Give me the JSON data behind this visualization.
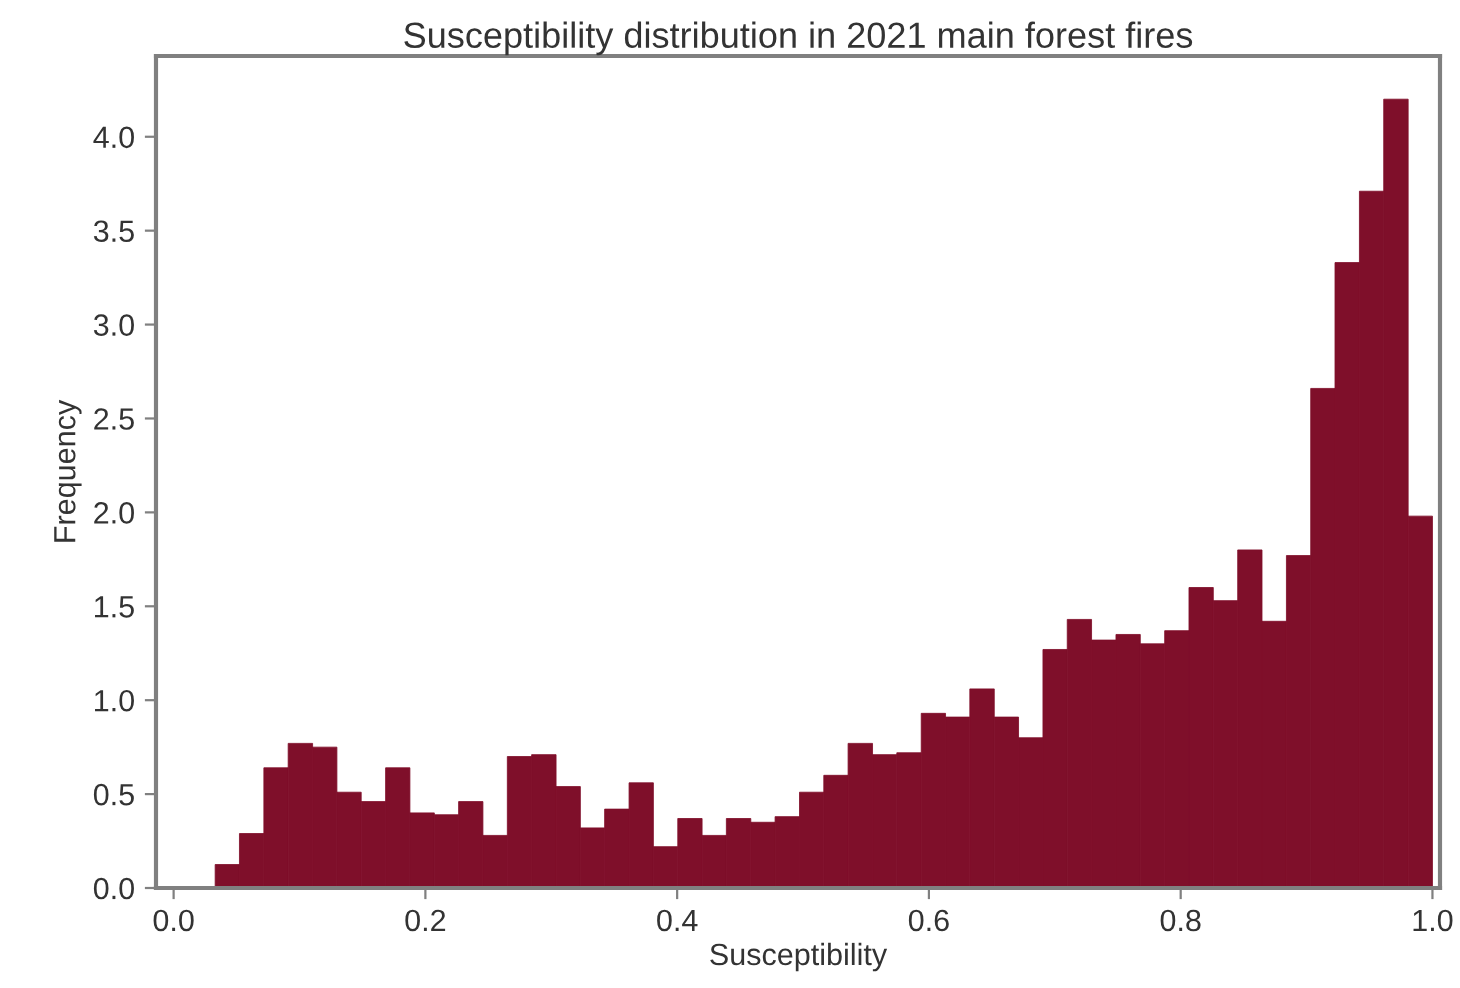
{
  "chart_data": {
    "type": "histogram",
    "title": "Susceptibility distribution in 2021 main forest fires",
    "xlabel": "Susceptibility",
    "ylabel": "Frequency",
    "color": "#7f0f2a",
    "bins": [
      0.033,
      0.0523,
      0.0717,
      0.091,
      0.1104,
      0.1297,
      0.149,
      0.1684,
      0.1877,
      0.2071,
      0.2264,
      0.2457,
      0.2651,
      0.2844,
      0.3038,
      0.3231,
      0.3424,
      0.3618,
      0.3811,
      0.4005,
      0.4198,
      0.4391,
      0.4585,
      0.4778,
      0.4972,
      0.5165,
      0.5358,
      0.5552,
      0.5745,
      0.5939,
      0.6132,
      0.6325,
      0.6519,
      0.6712,
      0.6906,
      0.7099,
      0.7292,
      0.7486,
      0.7679,
      0.7873,
      0.8066,
      0.8259,
      0.8453,
      0.8646,
      0.884,
      0.9033,
      0.9226,
      0.942,
      0.9613,
      0.9807,
      1.0
    ],
    "values": [
      0.125,
      0.29,
      0.64,
      0.77,
      0.75,
      0.51,
      0.46,
      0.64,
      0.4,
      0.39,
      0.46,
      0.28,
      0.7,
      0.71,
      0.54,
      0.32,
      0.42,
      0.56,
      0.22,
      0.37,
      0.28,
      0.37,
      0.35,
      0.38,
      0.51,
      0.6,
      0.77,
      0.71,
      0.72,
      0.93,
      0.91,
      1.06,
      0.91,
      0.8,
      1.27,
      1.43,
      1.32,
      1.35,
      1.3,
      1.37,
      1.6,
      1.53,
      1.8,
      1.42,
      1.77,
      2.66,
      3.33,
      3.71,
      4.2,
      1.98
    ],
    "xlim": [
      -0.014,
      1.006
    ],
    "ylim": [
      0,
      4.43
    ],
    "xticks": [
      {
        "value": 0,
        "label": "0.0"
      },
      0.2,
      0.4,
      0.6,
      0.8,
      {
        "value": 1,
        "label": "1.0"
      }
    ],
    "yticks": [
      {
        "value": 0,
        "label": "0.0"
      },
      0.5,
      {
        "value": 1,
        "label": "1.0"
      },
      1.5,
      {
        "value": 2,
        "label": "2.0"
      },
      2.5,
      {
        "value": 3,
        "label": "3.0"
      },
      3.5,
      {
        "value": 4,
        "label": "4.0"
      }
    ],
    "grid": false
  }
}
